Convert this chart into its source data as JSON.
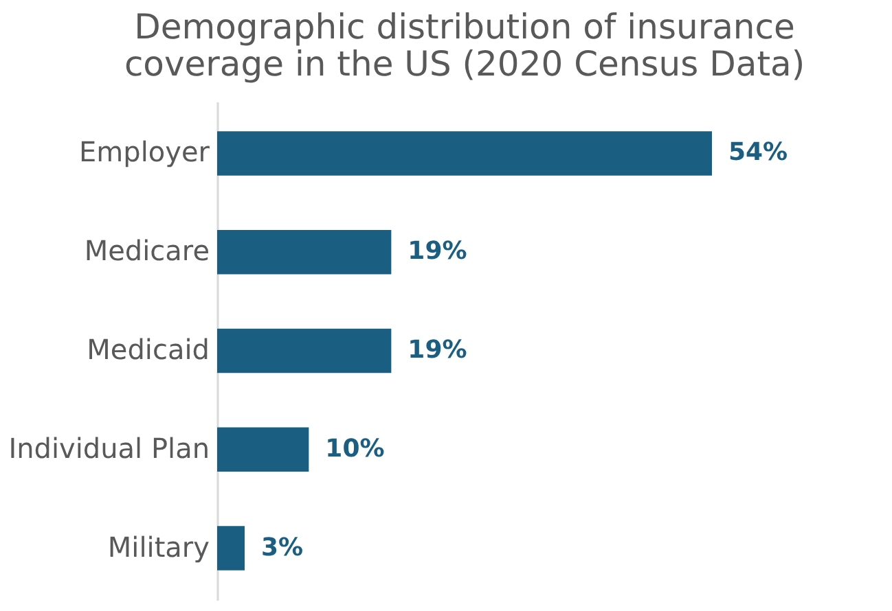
{
  "chart_data": {
    "type": "bar",
    "orientation": "horizontal",
    "title": "Demographic distribution of insurance coverage in the US (2020 Census Data)",
    "categories": [
      "Employer",
      "Medicare",
      "Medicaid",
      "Individual Plan",
      "Military"
    ],
    "values": [
      54,
      19,
      19,
      10,
      3
    ],
    "value_labels": [
      "54%",
      "19%",
      "19%",
      "10%",
      "3%"
    ],
    "color": "#1a5f82"
  }
}
